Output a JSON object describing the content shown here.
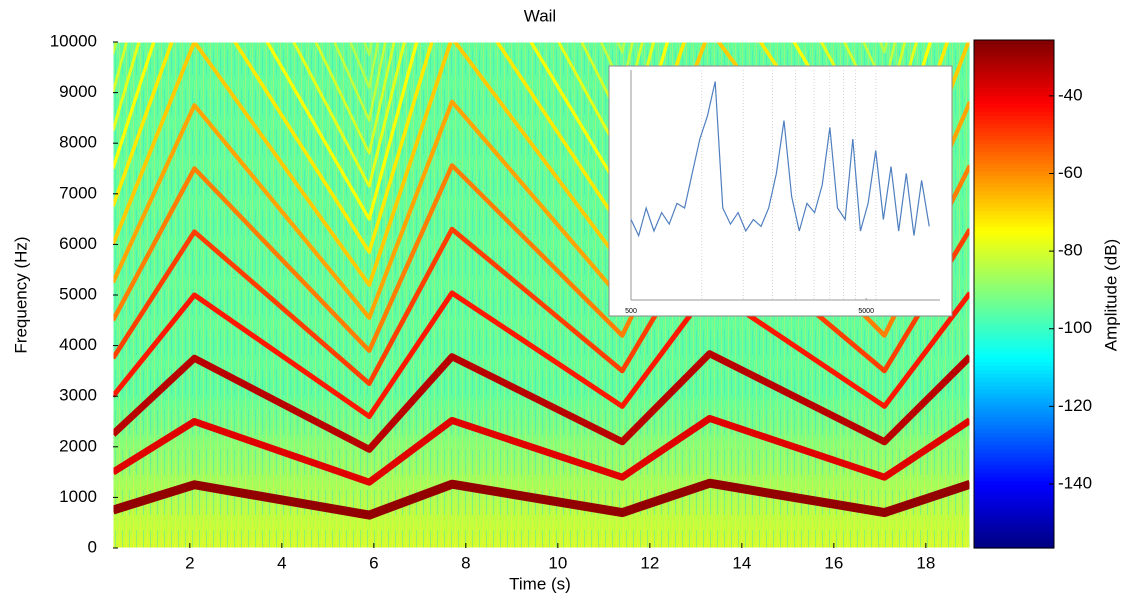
{
  "chart_data": [
    {
      "type": "spectrogram",
      "title": "Wail",
      "x_label": "Time (s)",
      "y_label": "Frequency (Hz)",
      "xlim": [
        0.33,
        18.96
      ],
      "ylim": [
        0,
        10000
      ],
      "xticks": [
        2,
        4,
        6,
        8,
        10,
        12,
        14,
        16,
        18
      ],
      "yticks": [
        0,
        1000,
        2000,
        3000,
        4000,
        5000,
        6000,
        7000,
        8000,
        9000,
        10000
      ],
      "x": [
        0.33,
        2.1,
        5.9,
        7.7,
        11.4,
        13.3,
        17.1,
        18.96
      ],
      "values": [
        750,
        1250,
        650,
        1260,
        700,
        1280,
        700,
        1260
      ],
      "harmonics": [
        1,
        2,
        3,
        4,
        5,
        6,
        7,
        8,
        9,
        10,
        11,
        12,
        13,
        14,
        15,
        16
      ],
      "harmonic_levels": [
        -28,
        -38,
        -33,
        -45,
        -50,
        -58,
        -63,
        -68,
        -72,
        -75,
        -78,
        -80,
        -82,
        -84,
        -85,
        -86
      ],
      "noise_floor": -95,
      "low_band_level": -80,
      "colormap": "jet",
      "colorbar": {
        "label": "Amplitude (dB)",
        "lim": [
          -156.5,
          -25.6
        ],
        "ticks": [
          -140,
          -120,
          -100,
          -80,
          -60,
          -40
        ]
      }
    },
    {
      "type": "line",
      "log_x": true,
      "color": "#4f7fbf",
      "xlim": [
        500,
        10300
      ],
      "ylim": [
        0,
        100
      ],
      "xticks": [
        500,
        5000
      ],
      "grid_x": [
        1000,
        1500,
        2000,
        2500,
        3000,
        3500,
        4000,
        4500,
        5500
      ],
      "x": [
        500,
        539,
        580,
        626,
        675,
        727,
        784,
        845,
        910,
        981,
        1057,
        1140,
        1228,
        1324,
        1427,
        1538,
        1657,
        1786,
        1925,
        2075,
        2236,
        2410,
        2597,
        2799,
        3017,
        3251,
        3504,
        3776,
        4070,
        4386,
        4727,
        5094,
        5490,
        5917,
        6377,
        6872,
        7406,
        7982,
        8602,
        9270
      ],
      "values": [
        35,
        28,
        40,
        30,
        38,
        33,
        42,
        40,
        55,
        70,
        80,
        95,
        40,
        33,
        38,
        30,
        35,
        32,
        40,
        55,
        78,
        45,
        30,
        42,
        38,
        50,
        75,
        40,
        35,
        70,
        30,
        42,
        65,
        35,
        58,
        30,
        55,
        28,
        52,
        32
      ]
    }
  ]
}
